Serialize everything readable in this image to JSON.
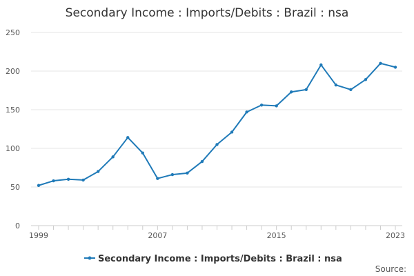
{
  "chart_data": {
    "type": "line",
    "title": "Secondary Income : Imports/Debits : Brazil : nsa",
    "xlabel": "",
    "ylabel": "",
    "ylim": [
      0,
      250
    ],
    "yticks": [
      "0",
      "50",
      "100",
      "150",
      "200",
      "250"
    ],
    "xlim": [
      1999,
      2023
    ],
    "xticks": [
      "1999",
      "2007",
      "2015",
      "2023"
    ],
    "grid": "horizontal",
    "legend": "bottom",
    "color": "#1f7ab8",
    "series": [
      {
        "name": "Secondary Income : Imports/Debits : Brazil : nsa",
        "x": [
          1999,
          2000,
          2001,
          2002,
          2003,
          2004,
          2005,
          2006,
          2007,
          2008,
          2009,
          2010,
          2011,
          2012,
          2013,
          2014,
          2015,
          2016,
          2017,
          2018,
          2019,
          2020,
          2021,
          2022,
          2023
        ],
        "values": [
          52,
          58,
          60,
          59,
          70,
          89,
          114,
          94,
          61,
          66,
          68,
          83,
          105,
          121,
          147,
          156,
          155,
          173,
          176,
          208,
          182,
          176,
          189,
          210,
          205
        ]
      }
    ],
    "source_label": "Source:"
  }
}
